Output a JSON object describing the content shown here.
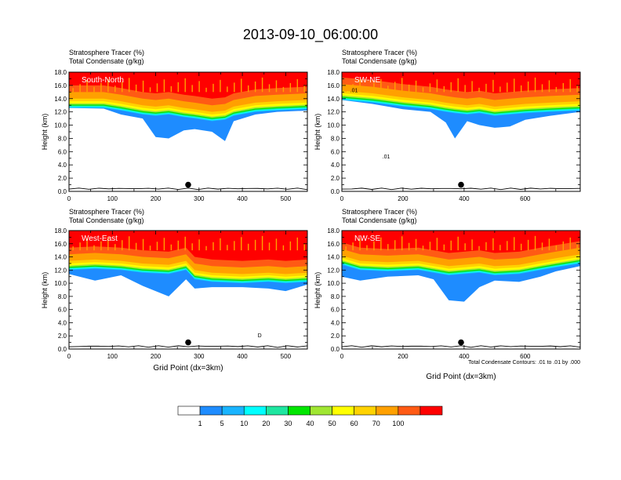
{
  "figure": {
    "title": "2013-09-10_06:00:00",
    "contour_note": "Total Condensate Contours: .01 to .01 by .000"
  },
  "colorbar": {
    "colors": [
      "#ffffff",
      "#1e8cff",
      "#19b4ff",
      "#00ffff",
      "#1ee6a0",
      "#00e600",
      "#a0e632",
      "#ffff00",
      "#ffd200",
      "#ffa000",
      "#ff5a14",
      "#ff0000"
    ],
    "labels": [
      "1",
      "5",
      "10",
      "20",
      "30",
      "40",
      "50",
      "60",
      "70",
      "100"
    ]
  },
  "chart_data": [
    {
      "type": "filled-contour",
      "name": "South-North",
      "panel_label": "South-North",
      "title_line1": "Stratosphere Tracer   (%)",
      "title_line2": "Total Condensate   (g/kg)",
      "ylabel": "Height (km)",
      "xlabel": "",
      "xlim": [
        0,
        550
      ],
      "ylim": [
        0,
        18
      ],
      "xticks": [
        0,
        100,
        200,
        300,
        400,
        500
      ],
      "yticks": [
        "0.0",
        "2.0",
        "4.0",
        "6.0",
        "8.0",
        "10.0",
        "12.0",
        "14.0",
        "16.0",
        "18.0"
      ],
      "marker": {
        "x": 275,
        "y": 1.0
      },
      "profile": [
        {
          "x": 0,
          "b": 12.6,
          "base": 12.6
        },
        {
          "x": 80,
          "b": 12.6,
          "base": 12.5
        },
        {
          "x": 120,
          "b": 12.2,
          "base": 11.6
        },
        {
          "x": 170,
          "b": 11.6,
          "base": 11.0
        },
        {
          "x": 200,
          "b": 11.4,
          "base": 8.2
        },
        {
          "x": 230,
          "b": 11.6,
          "base": 8.0
        },
        {
          "x": 265,
          "b": 11.2,
          "base": 9.2
        },
        {
          "x": 290,
          "b": 11.0,
          "base": 9.4
        },
        {
          "x": 330,
          "b": 10.6,
          "base": 9.0
        },
        {
          "x": 360,
          "b": 10.8,
          "base": 7.6
        },
        {
          "x": 380,
          "b": 11.4,
          "base": 10.6
        },
        {
          "x": 430,
          "b": 12.0,
          "base": 11.6
        },
        {
          "x": 480,
          "b": 12.2,
          "base": 12.0
        },
        {
          "x": 550,
          "b": 12.4,
          "base": 12.2
        }
      ]
    },
    {
      "type": "filled-contour",
      "name": "SW-NE",
      "panel_label": "SW-NE",
      "title_line1": "Stratosphere Tracer   (%)",
      "title_line2": "Total Condensate   (g/kg)",
      "ylabel": "Height (km)",
      "xlabel": "",
      "xlim": [
        0,
        780
      ],
      "ylim": [
        0,
        18
      ],
      "xticks": [
        0,
        200,
        400,
        600
      ],
      "yticks": [
        "0.0",
        "2.0",
        "4.0",
        "6.0",
        "8.0",
        "10.0",
        "12.0",
        "14.0",
        "16.0",
        "18.0"
      ],
      "marker": {
        "x": 390,
        "y": 1.0
      },
      "contour_labels": [
        ".01",
        ".01"
      ],
      "profile": [
        {
          "x": 0,
          "b": 13.8,
          "base": 13.8
        },
        {
          "x": 100,
          "b": 13.4,
          "base": 13.2
        },
        {
          "x": 200,
          "b": 12.8,
          "base": 12.4
        },
        {
          "x": 290,
          "b": 12.4,
          "base": 12.0
        },
        {
          "x": 340,
          "b": 12.0,
          "base": 10.4
        },
        {
          "x": 370,
          "b": 11.8,
          "base": 8.0
        },
        {
          "x": 410,
          "b": 11.6,
          "base": 10.6
        },
        {
          "x": 450,
          "b": 11.8,
          "base": 10.0
        },
        {
          "x": 500,
          "b": 11.4,
          "base": 9.6
        },
        {
          "x": 550,
          "b": 11.6,
          "base": 9.8
        },
        {
          "x": 600,
          "b": 11.8,
          "base": 10.8
        },
        {
          "x": 680,
          "b": 12.0,
          "base": 11.4
        },
        {
          "x": 780,
          "b": 12.2,
          "base": 12.0
        }
      ]
    },
    {
      "type": "filled-contour",
      "name": "West-East",
      "panel_label": "West-East",
      "title_line1": "Stratosphere Tracer   (%)",
      "title_line2": "Total Condensate   (g/kg)",
      "ylabel": "Height (km)",
      "xlabel": "Grid Point (dx=3km)",
      "xlim": [
        0,
        550
      ],
      "ylim": [
        0,
        18
      ],
      "xticks": [
        0,
        100,
        200,
        300,
        400,
        500
      ],
      "yticks": [
        "0.0",
        "2.0",
        "4.0",
        "6.0",
        "8.0",
        "10.0",
        "12.0",
        "14.0",
        "16.0",
        "18.0"
      ],
      "marker": {
        "x": 275,
        "y": 1.0
      },
      "contour_labels": [
        "D"
      ],
      "profile": [
        {
          "x": 0,
          "b": 12.0,
          "base": 11.4
        },
        {
          "x": 60,
          "b": 12.2,
          "base": 10.4
        },
        {
          "x": 120,
          "b": 12.0,
          "base": 11.2
        },
        {
          "x": 170,
          "b": 11.6,
          "base": 9.6
        },
        {
          "x": 230,
          "b": 11.4,
          "base": 8.0
        },
        {
          "x": 270,
          "b": 12.0,
          "base": 10.6
        },
        {
          "x": 290,
          "b": 10.6,
          "base": 9.2
        },
        {
          "x": 330,
          "b": 10.2,
          "base": 9.4
        },
        {
          "x": 400,
          "b": 10.0,
          "base": 9.4
        },
        {
          "x": 460,
          "b": 10.2,
          "base": 9.2
        },
        {
          "x": 500,
          "b": 10.0,
          "base": 8.8
        },
        {
          "x": 550,
          "b": 10.2,
          "base": 9.8
        }
      ]
    },
    {
      "type": "filled-contour",
      "name": "NW-SE",
      "panel_label": "NW-SE",
      "title_line1": "Stratosphere Tracer   (%)",
      "title_line2": "Total Condensate   (g/kg)",
      "ylabel": "Height (km)",
      "xlabel": "Grid Point (dx=3km)",
      "xlim": [
        0,
        780
      ],
      "ylim": [
        0,
        18
      ],
      "xticks": [
        0,
        200,
        400,
        600
      ],
      "yticks": [
        "0.0",
        "2.0",
        "4.0",
        "6.0",
        "8.0",
        "10.0",
        "12.0",
        "14.0",
        "16.0",
        "18.0"
      ],
      "marker": {
        "x": 390,
        "y": 1.0
      },
      "profile": [
        {
          "x": 0,
          "b": 12.8,
          "base": 11.0
        },
        {
          "x": 60,
          "b": 12.0,
          "base": 10.4
        },
        {
          "x": 150,
          "b": 11.8,
          "base": 11.0
        },
        {
          "x": 250,
          "b": 12.0,
          "base": 11.2
        },
        {
          "x": 300,
          "b": 11.6,
          "base": 10.6
        },
        {
          "x": 350,
          "b": 11.2,
          "base": 7.4
        },
        {
          "x": 400,
          "b": 11.4,
          "base": 7.2
        },
        {
          "x": 450,
          "b": 11.6,
          "base": 9.4
        },
        {
          "x": 500,
          "b": 11.2,
          "base": 10.4
        },
        {
          "x": 580,
          "b": 11.4,
          "base": 10.2
        },
        {
          "x": 650,
          "b": 12.0,
          "base": 11.0
        },
        {
          "x": 700,
          "b": 12.4,
          "base": 11.8
        },
        {
          "x": 780,
          "b": 13.0,
          "base": 12.6
        }
      ]
    }
  ]
}
